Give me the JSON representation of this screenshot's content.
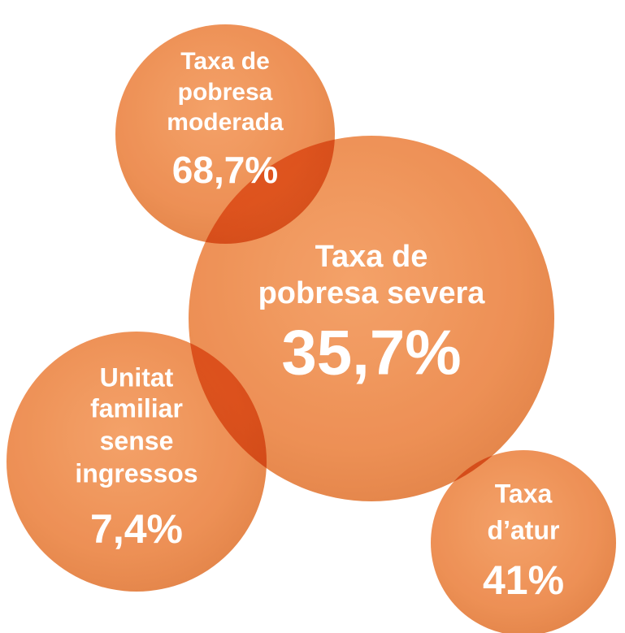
{
  "bubbles": [
    {
      "label": [
        "Taxa de",
        "pobresa",
        "moderada"
      ],
      "value": "68,7%"
    },
    {
      "label": [
        "Taxa de",
        "pobresa severa"
      ],
      "value": "35,7%"
    },
    {
      "label": [
        "Unitat",
        "familiar",
        "sense",
        "ingressos"
      ],
      "value": "7,4%"
    },
    {
      "label": [
        "Taxa",
        "d’atur"
      ],
      "value": "41%"
    }
  ]
}
